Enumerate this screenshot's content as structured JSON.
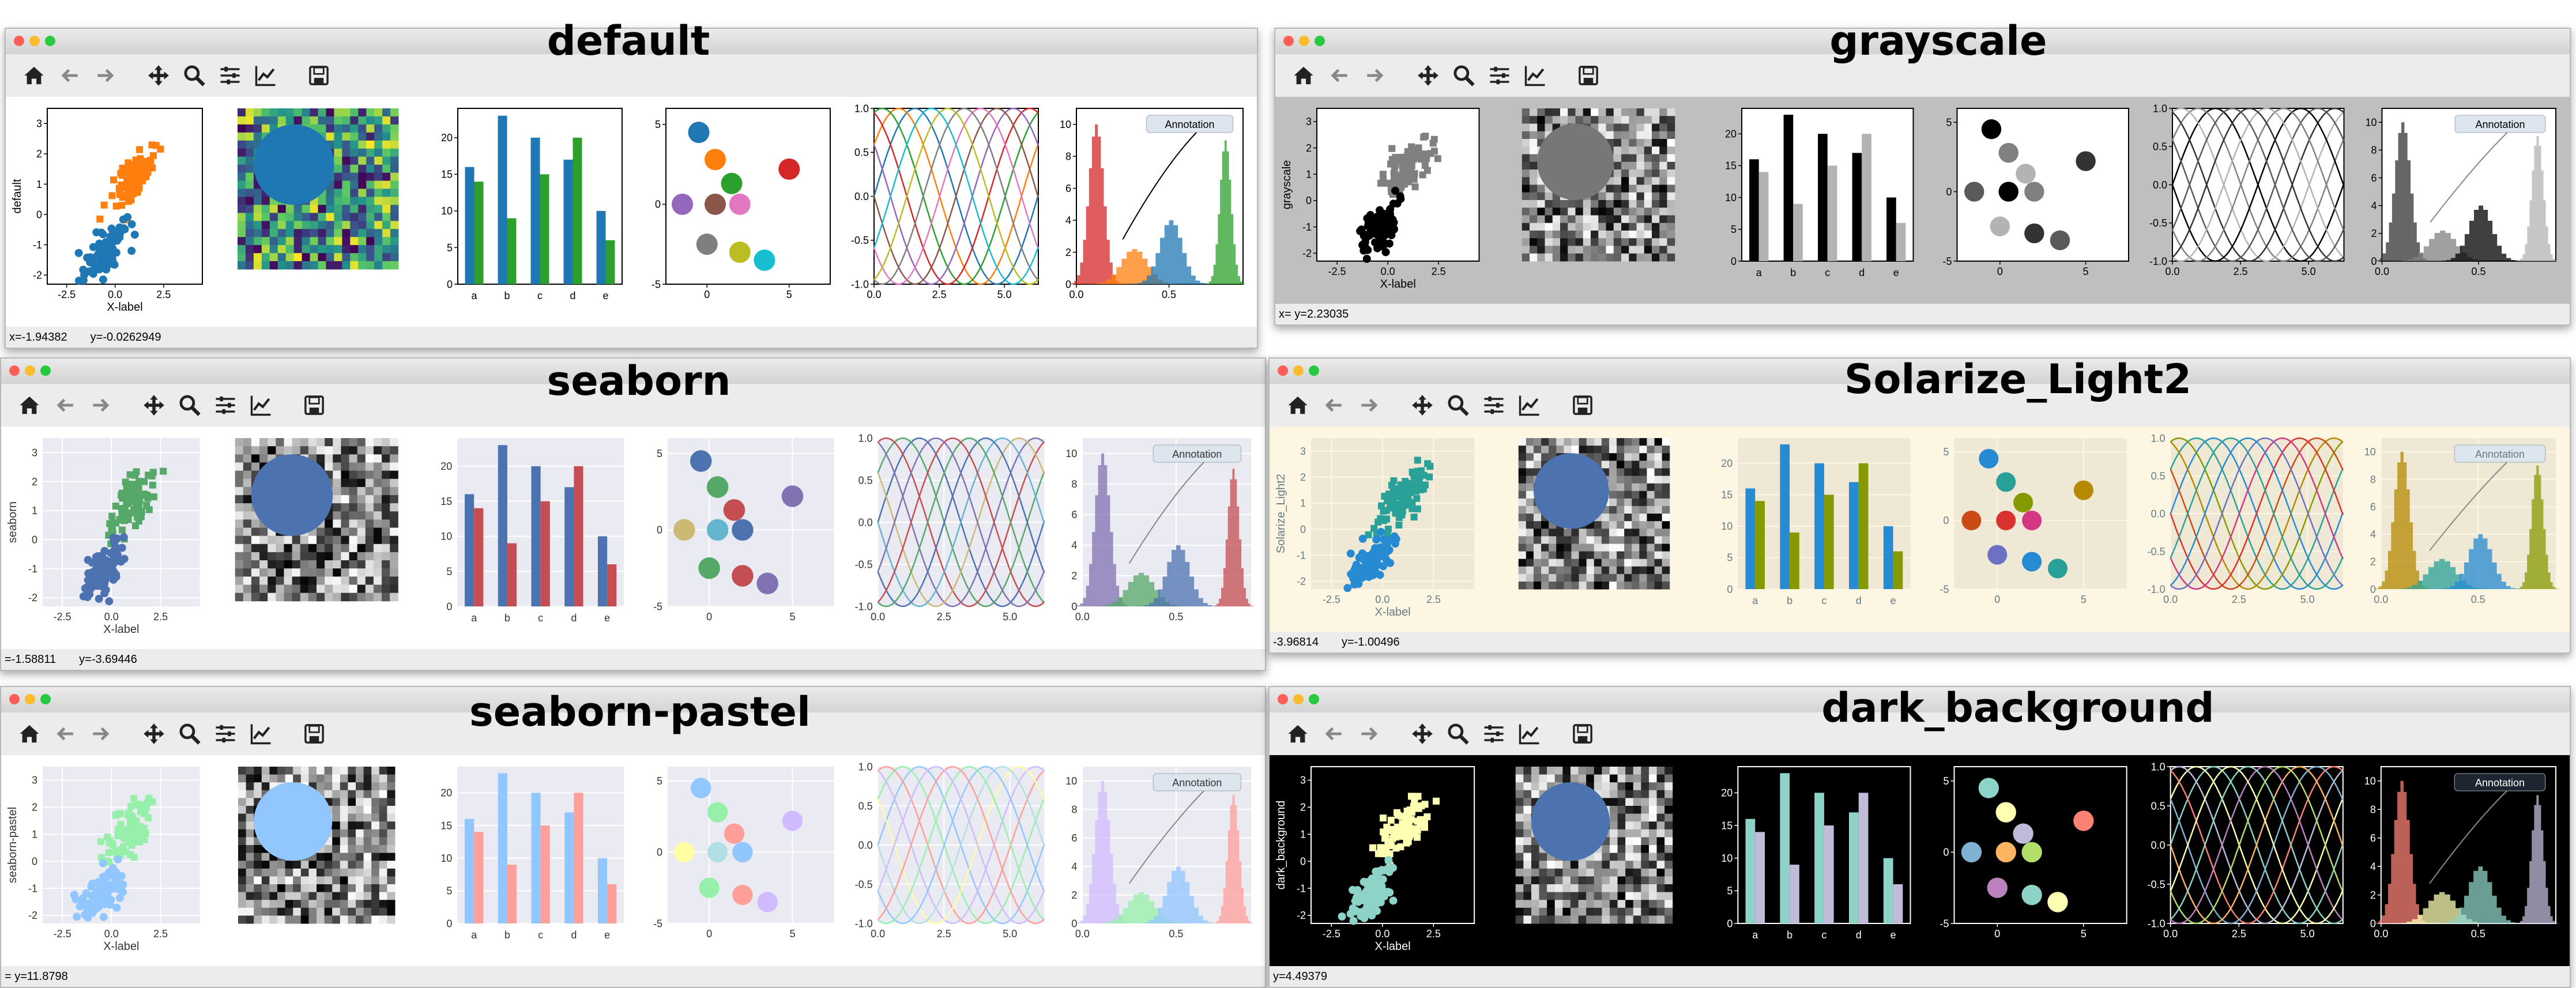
{
  "toolbar_icons": [
    "home-icon",
    "back-arrow-icon",
    "forward-arrow-icon",
    "pan-move-icon",
    "zoom-magnifier-icon",
    "configure-subplots-icon",
    "edit-axis-lines-icon",
    "save-floppy-icon"
  ],
  "windows": [
    {
      "style": "default",
      "title": "default",
      "status": [
        "x=-1.94382",
        "y=-0.0262949"
      ],
      "colors": {
        "bg": "#ffffff",
        "axes_bg": "#ffffff",
        "fg": "#000000",
        "grid": false,
        "cycle": [
          "#1f77b4",
          "#ff7f0e",
          "#2ca02c",
          "#d62728",
          "#9467bd",
          "#8c564b",
          "#e377c2",
          "#7f7f7f",
          "#bcbd22",
          "#17becf"
        ],
        "image": "viridis",
        "scatter_ylabel": "default"
      }
    },
    {
      "style": "grayscale",
      "title": "grayscale",
      "status": [
        "x= y=2.23035"
      ],
      "colors": {
        "bg": "#bfbfbf",
        "axes_bg": "#ffffff",
        "fg": "#000000",
        "grid": false,
        "cycle": [
          "#000000",
          "#808080",
          "#b3b3b3",
          "#333333",
          "#5a5a5a"
        ],
        "image": "gray",
        "scatter_ylabel": "grayscale"
      }
    },
    {
      "style": "seaborn",
      "title": "seaborn",
      "status": [
        "=-1.58811",
        "y=-3.69446"
      ],
      "colors": {
        "bg": "#ffffff",
        "axes_bg": "#eaeaf2",
        "fg": "#333333",
        "grid": true,
        "cycle": [
          "#4c72b0",
          "#55a868",
          "#c44e52",
          "#8172b2",
          "#ccb974",
          "#64b5cd"
        ],
        "image": "gray",
        "scatter_ylabel": "seaborn"
      }
    },
    {
      "style": "Solarize_Light2",
      "title": "Solarize_Light2",
      "status": [
        "-3.96814",
        "y=-1.00496"
      ],
      "colors": {
        "bg": "#fdf6e3",
        "axes_bg": "#eee8d5",
        "fg": "#657b83",
        "grid": true,
        "cycle": [
          "#268bd2",
          "#2aa198",
          "#859900",
          "#b58900",
          "#cb4b16",
          "#dc322f",
          "#d33682",
          "#6c71c4"
        ],
        "image": "gray",
        "scatter_ylabel": "Solarize_Light2"
      }
    },
    {
      "style": "seaborn-pastel",
      "title": "seaborn-pastel",
      "status": [
        "= y=11.8798"
      ],
      "colors": {
        "bg": "#ffffff",
        "axes_bg": "#eaeaf2",
        "fg": "#333333",
        "grid": true,
        "cycle": [
          "#92c6ff",
          "#97f0aa",
          "#ff9f9a",
          "#d0bbff",
          "#fffea3",
          "#b0e0e6"
        ],
        "image": "gray",
        "scatter_ylabel": "seaborn-pastel"
      }
    },
    {
      "style": "dark_background",
      "title": "dark_background",
      "status": [
        "y=4.49379"
      ],
      "colors": {
        "bg": "#000000",
        "axes_bg": "#000000",
        "fg": "#ffffff",
        "grid": false,
        "cycle": [
          "#8dd3c7",
          "#feffb3",
          "#bfbbd9",
          "#fa8174",
          "#81b1d2",
          "#fdb462",
          "#b3de69",
          "#bc82bd"
        ],
        "image": "gray",
        "scatter_ylabel": "dark_background"
      }
    }
  ],
  "chart_data": [
    {
      "type": "scatter",
      "xlabel": "X-label",
      "xticks": [
        "-2.5",
        "0.0",
        "2.5"
      ],
      "yticks": [
        "-2",
        "-1",
        "0",
        "1",
        "2",
        "3"
      ],
      "xlim": [
        -3.5,
        4.5
      ],
      "ylim": [
        -2.3,
        3.5
      ]
    },
    {
      "type": "heatmap",
      "grid": [
        20,
        20
      ],
      "circle": {
        "cx": 0.3,
        "cy": 0.3,
        "r": 0.25
      }
    },
    {
      "type": "bar",
      "categories": [
        "a",
        "b",
        "c",
        "d",
        "e"
      ],
      "series": [
        {
          "values": [
            16,
            23,
            20,
            17,
            10
          ]
        },
        {
          "values": [
            14,
            9,
            15,
            20,
            6
          ]
        }
      ],
      "yticks": [
        "0",
        "5",
        "10",
        "15",
        "20"
      ],
      "ylim": [
        0,
        24
      ]
    },
    {
      "type": "scatter",
      "xticks": [
        "0",
        "5"
      ],
      "yticks": [
        "-5",
        "0",
        "5"
      ],
      "xlim": [
        -2.5,
        7.5
      ],
      "ylim": [
        -5,
        6
      ],
      "points": [
        {
          "x": -0.5,
          "y": 4.5
        },
        {
          "x": 0.5,
          "y": 2.8
        },
        {
          "x": 1.5,
          "y": 1.3
        },
        {
          "x": 5.0,
          "y": 2.2
        },
        {
          "x": -1.5,
          "y": 0
        },
        {
          "x": 0.5,
          "y": 0
        },
        {
          "x": 2.0,
          "y": 0
        },
        {
          "x": 0.0,
          "y": -2.5
        },
        {
          "x": 2.0,
          "y": -3.0
        },
        {
          "x": 3.5,
          "y": -3.5
        }
      ]
    },
    {
      "type": "line",
      "xticks": [
        "0.0",
        "2.5",
        "5.0"
      ],
      "yticks": [
        "-1.0",
        "-0.5",
        "0.0",
        "0.5",
        "1.0"
      ],
      "xlim": [
        0,
        6.3
      ],
      "ylim": [
        -1,
        1
      ],
      "series_count": 10
    },
    {
      "type": "area",
      "xticks": [
        "0.0",
        "0.5"
      ],
      "yticks": [
        "0",
        "2",
        "4",
        "6",
        "8",
        "10"
      ],
      "xlim": [
        0,
        0.9
      ],
      "ylim": [
        0,
        11
      ],
      "annotation": "Annotation",
      "peaks": [
        {
          "mu": 0.1,
          "sigma": 0.04,
          "amp": 10
        },
        {
          "mu": 0.3,
          "sigma": 0.07,
          "amp": 2.2
        },
        {
          "mu": 0.5,
          "sigma": 0.06,
          "amp": 4
        },
        {
          "mu": 0.8,
          "sigma": 0.03,
          "amp": 9
        }
      ]
    }
  ]
}
